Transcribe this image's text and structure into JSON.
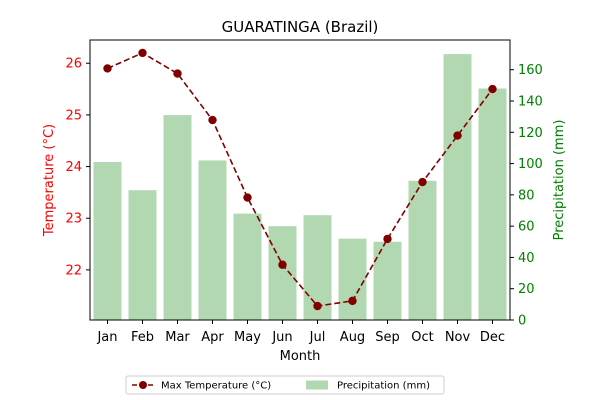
{
  "chart_data": {
    "type": "bar+line",
    "title": "GUARATINGA (Brazil)",
    "xlabel": "Month",
    "categories": [
      "Jan",
      "Feb",
      "Mar",
      "Apr",
      "May",
      "Jun",
      "Jul",
      "Aug",
      "Sep",
      "Oct",
      "Nov",
      "Dec"
    ],
    "y_left": {
      "label": "Temperature (°C)",
      "range": [
        21.03,
        26.45
      ],
      "ticks": [
        22,
        23,
        24,
        25,
        26
      ],
      "color": "#ff0000"
    },
    "y_right": {
      "label": "Precipitation (mm)",
      "range": [
        0,
        179
      ],
      "ticks": [
        0,
        20,
        40,
        60,
        80,
        100,
        120,
        140,
        160
      ],
      "color": "#008000"
    },
    "series": [
      {
        "name": "Max Temperature (°C)",
        "type": "line",
        "axis": "left",
        "color": "#800000",
        "values": [
          25.9,
          26.2,
          25.8,
          24.9,
          23.4,
          22.1,
          21.3,
          21.4,
          22.6,
          23.7,
          24.6,
          25.5
        ]
      },
      {
        "name": "Precipitation (mm)",
        "type": "bar",
        "axis": "right",
        "color": "#b2d8b2",
        "values": [
          101,
          83,
          131,
          102,
          68,
          60,
          67,
          52,
          50,
          89,
          170,
          148
        ]
      }
    ],
    "legend_position": "bottom-center"
  }
}
